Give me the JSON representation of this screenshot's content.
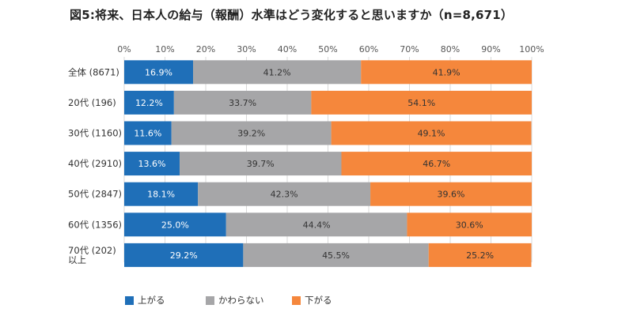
{
  "chart_data": {
    "type": "bar",
    "orientation": "horizontal",
    "stacked": true,
    "title": "図5:将来、日本人の給与（報酬）水準はどう変化すると思いますか（n=8,671）",
    "categories": [
      [
        "全体 (8671)"
      ],
      [
        "20代 (196)"
      ],
      [
        "30代 (1160)"
      ],
      [
        "40代 (2910)"
      ],
      [
        "50代 (2847)"
      ],
      [
        "60代 (1356)"
      ],
      [
        "70代 (202)",
        "以上"
      ]
    ],
    "x_ticks": [
      "0%",
      "10%",
      "20%",
      "30%",
      "40%",
      "50%",
      "60%",
      "70%",
      "80%",
      "90%",
      "100%"
    ],
    "xlim": [
      0,
      100
    ],
    "series": [
      {
        "name": "上がる",
        "color": "#1f6fb8",
        "label_color": "#ffffff",
        "values": [
          16.9,
          12.2,
          11.6,
          13.6,
          18.1,
          25.0,
          29.2
        ],
        "labels": [
          "16.9%",
          "12.2%",
          "11.6%",
          "13.6%",
          "18.1%",
          "25.0%",
          "29.2%"
        ]
      },
      {
        "name": "かわらない",
        "color": "#a6a6a8",
        "label_color": "#333333",
        "values": [
          41.2,
          33.7,
          39.2,
          39.7,
          42.3,
          44.4,
          45.5
        ],
        "labels": [
          "41.2%",
          "33.7%",
          "39.2%",
          "39.7%",
          "42.3%",
          "44.4%",
          "45.5%"
        ]
      },
      {
        "name": "下がる",
        "color": "#f5873c",
        "label_color": "#333333",
        "values": [
          41.9,
          54.1,
          49.1,
          46.7,
          39.6,
          30.6,
          25.2
        ],
        "labels": [
          "41.9%",
          "54.1%",
          "49.1%",
          "46.7%",
          "39.6%",
          "30.6%",
          "25.2%"
        ]
      }
    ],
    "grid": true,
    "legend_position": "bottom"
  }
}
